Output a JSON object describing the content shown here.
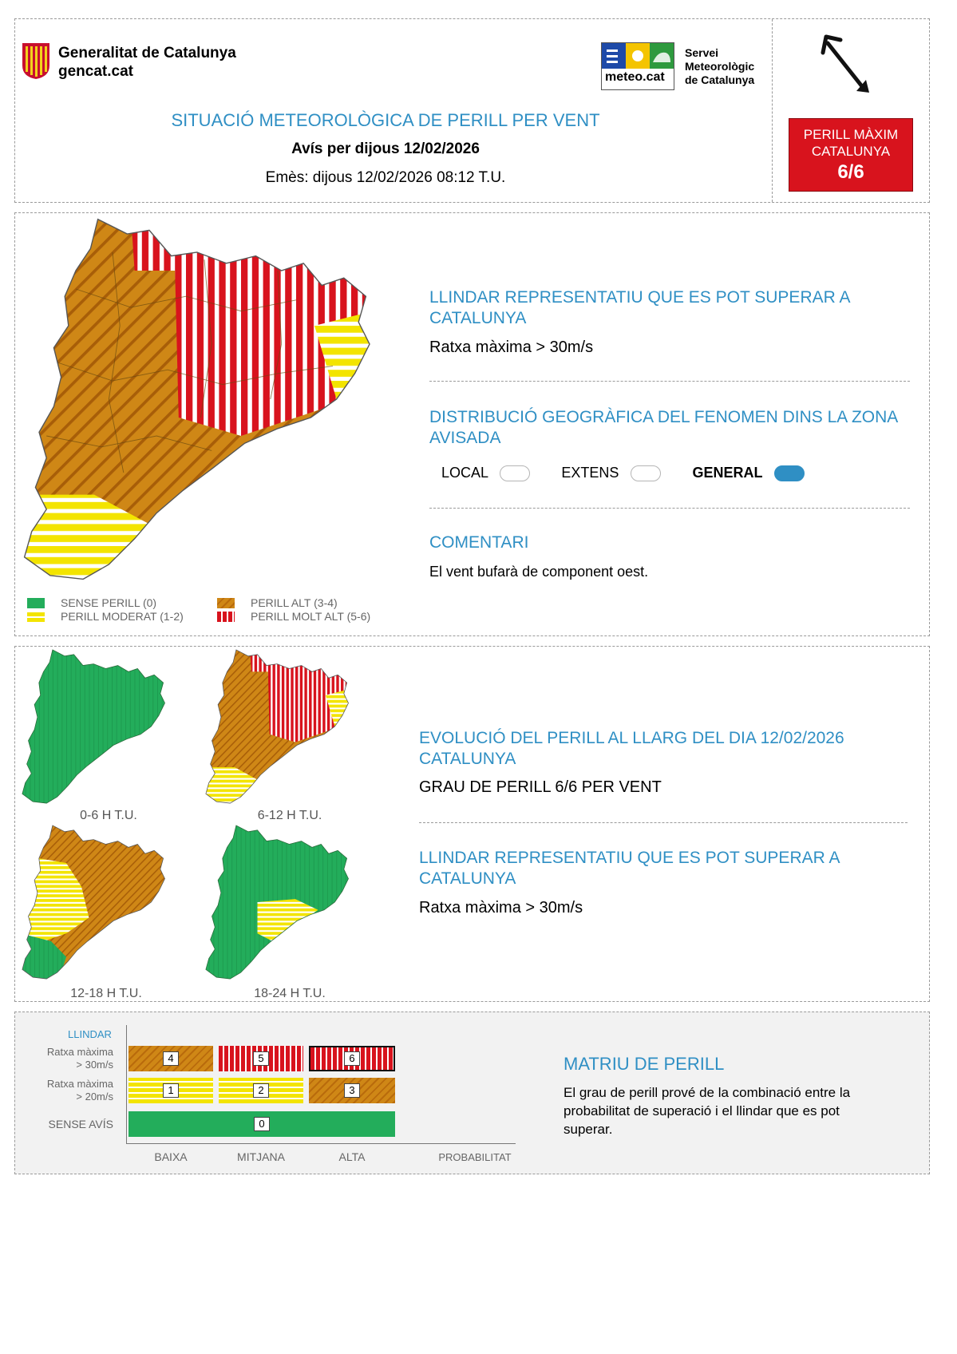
{
  "header": {
    "gov_name": "Generalitat de Catalunya",
    "gov_site": "gencat.cat",
    "meteo_brand": "meteo.cat",
    "service_line1": "Servei",
    "service_line2": "Meteorològic",
    "service_line3": "de Catalunya",
    "title": "SITUACIÓ METEOROLÒGICA DE PERILL PER VENT",
    "subtitle": "Avís per dijous 12/02/2026",
    "issued": "Emès: dijous 12/02/2026 08:12 T.U.",
    "max_badge_line1": "PERILL MÀXIM",
    "max_badge_line2": "CATALUNYA",
    "max_badge_value": "6/6",
    "wind_direction_icon": "arrow-southeast-icon"
  },
  "colors": {
    "accent": "#2f8fc4",
    "danger_red": "#d8131d",
    "orange": "#cf8716",
    "yellow": "#f3e400",
    "green": "#23ad5b"
  },
  "main": {
    "threshold_title": "LLINDAR REPRESENTATIU QUE ES POT SUPERAR A CATALUNYA",
    "threshold_value": "Ratxa màxima > 30m/s",
    "distribution_title": "DISTRIBUCIÓ GEOGRÀFICA DEL FENOMEN DINS LA ZONA AVISADA",
    "distribution_options": [
      {
        "label": "LOCAL",
        "selected": false
      },
      {
        "label": "EXTENS",
        "selected": false
      },
      {
        "label": "GENERAL",
        "selected": true
      }
    ],
    "comment_title": "COMENTARI",
    "comment_text": "El vent bufarà de component oest."
  },
  "legend": [
    {
      "label": "SENSE PERILL (0)",
      "style": "green"
    },
    {
      "label": "PERILL MODERAT (1-2)",
      "style": "yellow"
    },
    {
      "label": "PERILL ALT (3-4)",
      "style": "orange"
    },
    {
      "label": "PERILL MOLT ALT (5-6)",
      "style": "red"
    }
  ],
  "evolution": {
    "periods": [
      "0-6 H T.U.",
      "6-12 H T.U.",
      "12-18 H T.U.",
      "18-24 H T.U."
    ],
    "title": "EVOLUCIÓ DEL PERILL AL LLARG DEL DIA 12/02/2026 CATALUNYA",
    "grade": "GRAU DE PERILL 6/6 PER VENT",
    "threshold_title": "LLINDAR REPRESENTATIU QUE ES POT SUPERAR A CATALUNYA",
    "threshold_value": "Ratxa màxima > 30m/s"
  },
  "matrix": {
    "y_title": "LLINDAR",
    "rows": [
      {
        "label1": "Ratxa màxima",
        "label2": "> 30m/s",
        "cells": [
          "4",
          "5",
          "6"
        ]
      },
      {
        "label1": "Ratxa màxima",
        "label2": "> 20m/s",
        "cells": [
          "1",
          "2",
          "3"
        ]
      },
      {
        "label1": "SENSE AVÍS",
        "label2": "",
        "cells": [
          "0"
        ]
      }
    ],
    "x_labels": [
      "BAIXA",
      "MITJANA",
      "ALTA"
    ],
    "x_title": "PROBABILITAT",
    "title": "MATRIU DE PERILL",
    "description": "El grau de perill prové de la combinació entre la probabilitat de superació i el llindar que es pot superar."
  }
}
